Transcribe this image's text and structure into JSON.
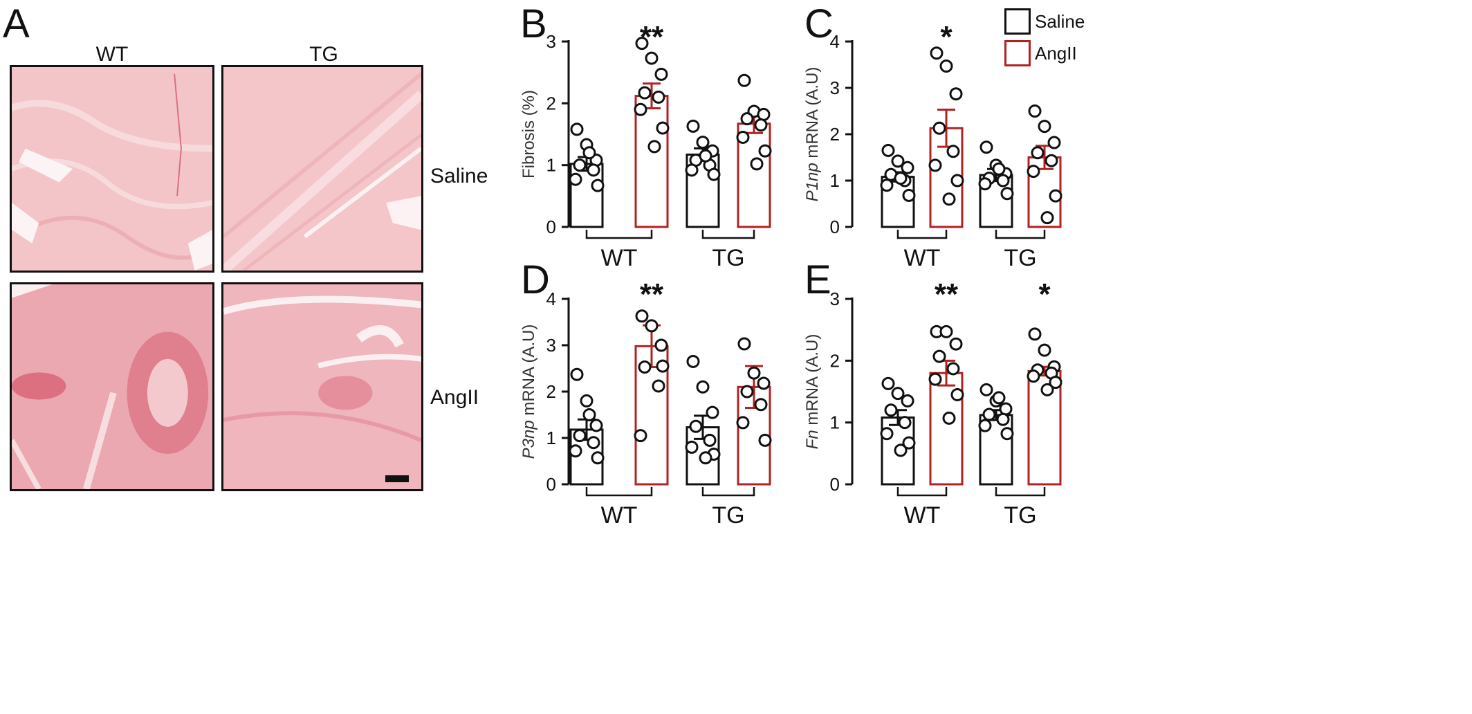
{
  "panels": {
    "A": {
      "letter": "A",
      "columns": [
        "WT",
        "TG"
      ],
      "rows": [
        "Saline",
        "AngII"
      ]
    }
  },
  "legend": [
    {
      "label": "Saline",
      "color": "#111111"
    },
    {
      "label": "AngII",
      "color": "#b22222"
    }
  ],
  "colors": {
    "saline": "#111111",
    "angii": "#b22222"
  },
  "chart_data": [
    {
      "panel": "B",
      "type": "bar",
      "ylabel": "Fibrosis (%)",
      "ylabel_italic": "",
      "ylim": [
        0,
        3
      ],
      "yticks": [
        0,
        1,
        2,
        3
      ],
      "groups": [
        "WT",
        "TG"
      ],
      "series": [
        "Saline",
        "AngII"
      ],
      "bars": [
        {
          "group": "WT",
          "series": "Saline",
          "mean": 1.02,
          "sem": 0.11,
          "points": [
            1.58,
            1.33,
            1.08,
            1.0,
            0.92,
            0.77,
            0.67,
            1.2
          ],
          "sig": ""
        },
        {
          "group": "WT",
          "series": "AngII",
          "mean": 2.12,
          "sem": 0.2,
          "points": [
            2.97,
            2.73,
            2.47,
            2.17,
            2.1,
            1.9,
            1.6,
            1.3
          ],
          "sig": "**"
        },
        {
          "group": "TG",
          "series": "Saline",
          "mean": 1.17,
          "sem": 0.1,
          "points": [
            1.63,
            1.37,
            1.23,
            1.08,
            1.0,
            0.92,
            0.85,
            1.15
          ],
          "sig": ""
        },
        {
          "group": "TG",
          "series": "AngII",
          "mean": 1.67,
          "sem": 0.15,
          "points": [
            2.37,
            1.87,
            1.82,
            1.75,
            1.65,
            1.45,
            1.23,
            1.02
          ],
          "sig": ""
        }
      ]
    },
    {
      "panel": "C",
      "type": "bar",
      "ylabel": "mRNA (A.U)",
      "ylabel_italic": "P1np",
      "ylim": [
        0,
        4
      ],
      "yticks": [
        0,
        1,
        2,
        3,
        4
      ],
      "groups": [
        "WT",
        "TG"
      ],
      "series": [
        "Saline",
        "AngII"
      ],
      "bars": [
        {
          "group": "WT",
          "series": "Saline",
          "mean": 1.08,
          "sem": 0.1,
          "points": [
            1.65,
            1.42,
            1.28,
            1.13,
            1.0,
            0.9,
            0.68,
            1.05
          ],
          "sig": ""
        },
        {
          "group": "WT",
          "series": "AngII",
          "mean": 2.13,
          "sem": 0.4,
          "points": [
            3.75,
            3.47,
            2.87,
            2.13,
            1.63,
            1.33,
            1.0,
            0.6
          ],
          "sig": "*"
        },
        {
          "group": "TG",
          "series": "Saline",
          "mean": 1.12,
          "sem": 0.13,
          "points": [
            1.72,
            1.33,
            1.15,
            1.05,
            1.0,
            0.93,
            0.72,
            1.25
          ],
          "sig": ""
        },
        {
          "group": "TG",
          "series": "AngII",
          "mean": 1.5,
          "sem": 0.25,
          "points": [
            2.5,
            2.17,
            1.82,
            1.6,
            1.43,
            1.2,
            0.67,
            0.2
          ],
          "sig": ""
        }
      ]
    },
    {
      "panel": "D",
      "type": "bar",
      "ylabel": "mRNA (A.U)",
      "ylabel_italic": "P3np",
      "ylim": [
        0,
        4
      ],
      "yticks": [
        0,
        1,
        2,
        3,
        4
      ],
      "groups": [
        "WT",
        "TG"
      ],
      "series": [
        "Saline",
        "AngII"
      ],
      "bars": [
        {
          "group": "WT",
          "series": "Saline",
          "mean": 1.18,
          "sem": 0.22,
          "points": [
            2.37,
            1.8,
            1.27,
            1.05,
            0.9,
            0.72,
            0.57,
            1.5
          ],
          "sig": ""
        },
        {
          "group": "WT",
          "series": "AngII",
          "mean": 2.98,
          "sem": 0.45,
          "points": [
            3.63,
            3.42,
            3.0,
            2.53,
            2.12,
            1.05,
            2.55
          ],
          "sig": "**"
        },
        {
          "group": "TG",
          "series": "Saline",
          "mean": 1.23,
          "sem": 0.25,
          "points": [
            2.65,
            2.1,
            1.55,
            1.25,
            0.95,
            0.8,
            0.65,
            0.57
          ],
          "sig": ""
        },
        {
          "group": "TG",
          "series": "AngII",
          "mean": 2.1,
          "sem": 0.45,
          "points": [
            3.03,
            2.4,
            2.18,
            2.0,
            1.72,
            1.33,
            0.95
          ],
          "sig": ""
        }
      ]
    },
    {
      "panel": "E",
      "type": "bar",
      "ylabel": "mRNA (A.U)",
      "ylabel_italic": "Fn",
      "ylim": [
        0,
        3
      ],
      "yticks": [
        0,
        1,
        2,
        3
      ],
      "groups": [
        "WT",
        "TG"
      ],
      "series": [
        "Saline",
        "AngII"
      ],
      "bars": [
        {
          "group": "WT",
          "series": "Saline",
          "mean": 1.08,
          "sem": 0.12,
          "points": [
            1.63,
            1.47,
            1.35,
            1.2,
            1.0,
            0.82,
            0.67,
            0.55
          ],
          "sig": ""
        },
        {
          "group": "WT",
          "series": "AngII",
          "mean": 1.8,
          "sem": 0.2,
          "points": [
            2.47,
            2.47,
            2.27,
            2.07,
            1.87,
            1.7,
            1.45,
            1.07
          ],
          "sig": "**"
        },
        {
          "group": "TG",
          "series": "Saline",
          "mean": 1.12,
          "sem": 0.08,
          "points": [
            1.53,
            1.35,
            1.22,
            1.13,
            1.05,
            0.95,
            0.82,
            1.4
          ],
          "sig": ""
        },
        {
          "group": "TG",
          "series": "AngII",
          "mean": 1.83,
          "sem": 0.07,
          "points": [
            2.43,
            2.17,
            1.9,
            1.85,
            1.8,
            1.75,
            1.65,
            1.53
          ],
          "sig": "*"
        }
      ]
    }
  ]
}
